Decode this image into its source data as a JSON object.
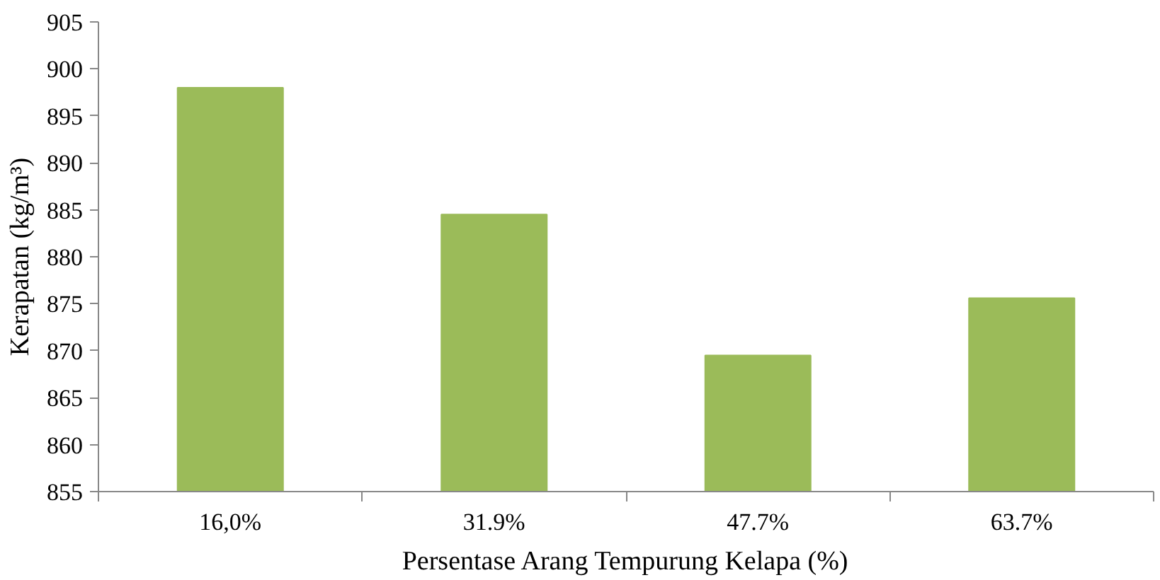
{
  "chart_data": {
    "type": "bar",
    "xlabel": "Persentase Arang Tempurung Kelapa (%)",
    "ylabel": "Kerapatan (kg/m³)",
    "categories": [
      "16,0%",
      "31.9%",
      "47.7%",
      "63.7%"
    ],
    "values": [
      898,
      884.5,
      869.5,
      875.6
    ],
    "color": "#9bbb59",
    "ylim": [
      855,
      905
    ],
    "yticks": [
      855,
      860,
      865,
      870,
      875,
      880,
      885,
      890,
      895,
      900,
      905
    ],
    "grid": false
  }
}
